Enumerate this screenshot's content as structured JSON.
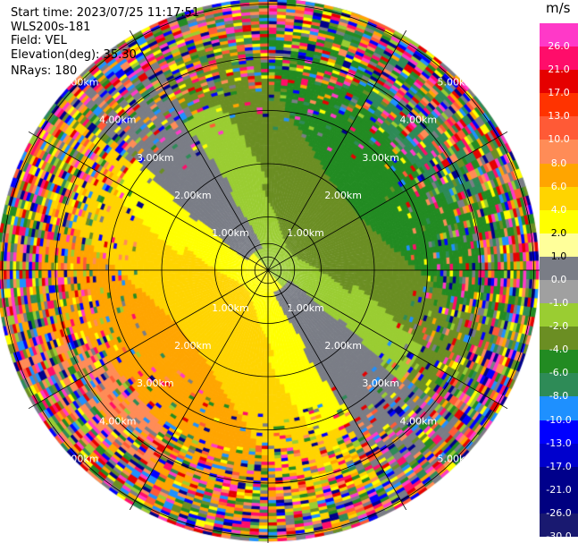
{
  "header": {
    "start_time": "Start time: 2023/07/25 11:17:51",
    "instrument": "WLS200s-181",
    "field": "Field: VEL",
    "elevation": "Elevation(deg): 35.30",
    "nrays": "NRays: 180"
  },
  "colorbar": {
    "unit": "m/s",
    "bands": [
      {
        "label": "26.0",
        "color": "#ff39c8"
      },
      {
        "label": "21.0",
        "color": "#ff0d6a"
      },
      {
        "label": "17.0",
        "color": "#e50000"
      },
      {
        "label": "13.0",
        "color": "#ff3300"
      },
      {
        "label": "10.0",
        "color": "#ff5a36"
      },
      {
        "label": "8.0",
        "color": "#ff8c57"
      },
      {
        "label": "6.0",
        "color": "#ffa500"
      },
      {
        "label": "4.0",
        "color": "#ffd400"
      },
      {
        "label": "2.0",
        "color": "#ffff00"
      },
      {
        "label": "1.0",
        "color": "#ffff9a"
      },
      {
        "label": "0.0",
        "color": "#7a7d86"
      },
      {
        "label": "-1.0",
        "color": "#a0a0a0"
      },
      {
        "label": "-2.0",
        "color": "#9acd32"
      },
      {
        "label": "-4.0",
        "color": "#6b8e23"
      },
      {
        "label": "-6.0",
        "color": "#228b22"
      },
      {
        "label": "-8.0",
        "color": "#2e8b57"
      },
      {
        "label": "-10.0",
        "color": "#1e90ff"
      },
      {
        "label": "-13.0",
        "color": "#0000ff"
      },
      {
        "label": "-17.0",
        "color": "#0000cd"
      },
      {
        "label": "-21.0",
        "color": "#00008b"
      },
      {
        "label": "-26.0",
        "color": "#000080"
      },
      {
        "label": "-30.0",
        "color": "#191970"
      }
    ]
  },
  "range_rings": [
    {
      "km": 1,
      "label": "1.00km"
    },
    {
      "km": 2,
      "label": "2.00km"
    },
    {
      "km": 3,
      "label": "3.00km"
    },
    {
      "km": 4,
      "label": "4.00km"
    },
    {
      "km": 5,
      "label": "5.00km"
    }
  ]
}
